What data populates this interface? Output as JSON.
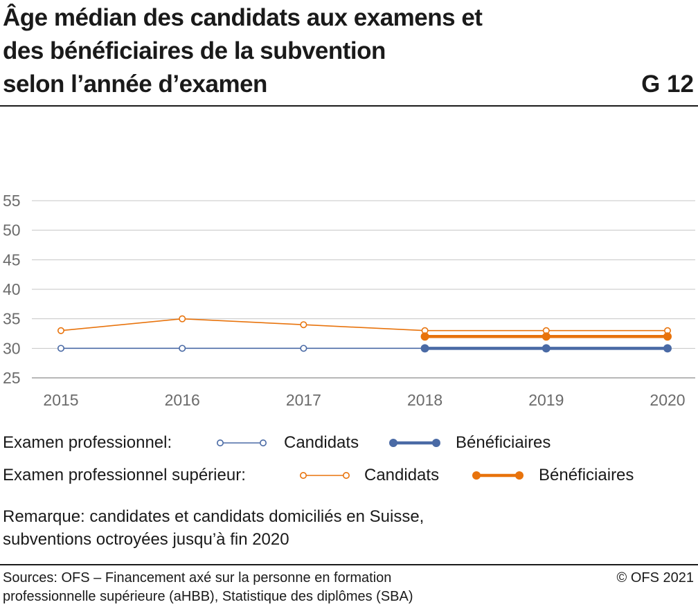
{
  "title_lines": [
    "Âge médian des candidats aux examens et",
    "des bénéficiaires de la subvention",
    "selon l’année d’examen"
  ],
  "figure_id": "G 12",
  "chart_data": {
    "type": "line",
    "x": [
      2015,
      2016,
      2017,
      2018,
      2019,
      2020
    ],
    "x_tick_labels": [
      "2015",
      "2016",
      "2017",
      "2018",
      "2019",
      "2020"
    ],
    "y_ticks": [
      25,
      30,
      35,
      40,
      45,
      50,
      55
    ],
    "ylim": [
      25,
      55
    ],
    "grid": true,
    "series": [
      {
        "group": "Examen professionnel:",
        "name": "Candidats",
        "color": "#4a6aa5",
        "style": "thin-open",
        "x": [
          2015,
          2016,
          2017,
          2018,
          2019,
          2020
        ],
        "values": [
          30,
          30,
          30,
          30,
          30,
          30
        ]
      },
      {
        "group": "Examen professionnel:",
        "name": "Bénéficiaires",
        "color": "#4a6aa5",
        "style": "thick-filled",
        "x": [
          2018,
          2019,
          2020
        ],
        "values": [
          30,
          30,
          30
        ]
      },
      {
        "group": "Examen professionnel supérieur:",
        "name": "Candidats",
        "color": "#e8730c",
        "style": "thin-open",
        "x": [
          2015,
          2016,
          2017,
          2018,
          2019,
          2020
        ],
        "values": [
          33,
          35,
          34,
          33,
          33,
          33
        ]
      },
      {
        "group": "Examen professionnel supérieur:",
        "name": "Bénéficiaires",
        "color": "#e8730c",
        "style": "thick-filled",
        "x": [
          2018,
          2019,
          2020
        ],
        "values": [
          32,
          32,
          32
        ]
      }
    ]
  },
  "legend": {
    "row1": {
      "group": "Examen professionnel:",
      "candidats": "Candidats",
      "beneficiaires": "Bénéficiaires"
    },
    "row2": {
      "group": "Examen professionnel supérieur:",
      "candidats": "Candidats",
      "beneficiaires": "Bénéficiaires"
    }
  },
  "note_lines": [
    "Remarque: candidates et candidats domiciliés en Suisse,",
    "subventions octroyées jusqu’à fin 2020"
  ],
  "sources_lines": [
    "Sources: OFS – Financement axé sur la personne en formation",
    "professionnelle supérieure (aHBB), Statistique des diplômes (SBA)"
  ],
  "copyright": "© OFS 2021",
  "colors": {
    "blue": "#4a6aa5",
    "orange": "#e8730c",
    "grid": "#c4c4c4"
  }
}
